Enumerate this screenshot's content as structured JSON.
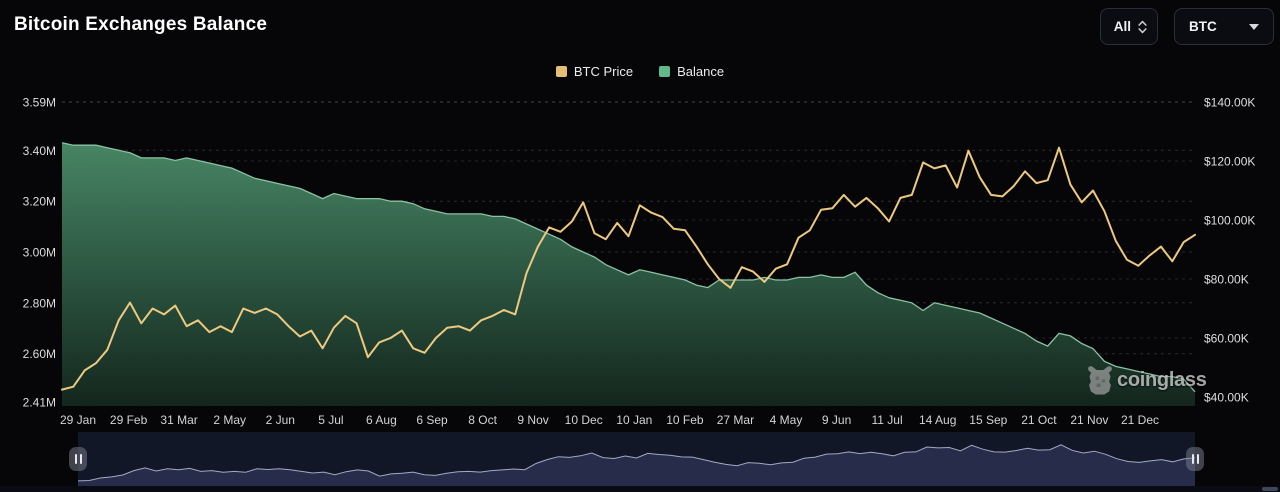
{
  "header": {
    "title": "Bitcoin Exchanges Balance"
  },
  "controls": {
    "range_select": {
      "value": "All"
    },
    "coin_select": {
      "value": "BTC"
    }
  },
  "legend": [
    {
      "label": "BTC Price",
      "color": "#e5be76"
    },
    {
      "label": "Balance",
      "color": "#5fb98a"
    }
  ],
  "watermark": {
    "text": "coinglass"
  },
  "chart_data": {
    "type": "line",
    "title": "Bitcoin Exchanges Balance",
    "x_start": "29 Jan 2024",
    "x_interval": "weekly",
    "x_ticks": [
      "29 Jan",
      "29 Feb",
      "31 Mar",
      "2 May",
      "2 Jun",
      "5 Jul",
      "6 Aug",
      "6 Sep",
      "8 Oct",
      "9 Nov",
      "10 Dec",
      "10 Jan",
      "10 Feb",
      "27 Mar",
      "4 May",
      "9 Jun",
      "11 Jul",
      "14 Aug",
      "15 Sep",
      "21 Oct",
      "21 Nov",
      "21 Dec"
    ],
    "grid": "dashed",
    "legend_position": "top-center",
    "y_left": {
      "title": "Balance (BTC)",
      "min": 2.41,
      "max": 3.59,
      "tick_values": [
        3.59,
        3.4,
        3.2,
        3.0,
        2.8,
        2.6,
        2.41
      ],
      "tick_labels": [
        "3.59M",
        "3.40M",
        "3.20M",
        "3.00M",
        "2.80M",
        "2.60M",
        "2.41M"
      ]
    },
    "y_right": {
      "title": "BTC Price (USD)",
      "min": 40,
      "max": 140,
      "tick_values": [
        140,
        120,
        100,
        80,
        60,
        40
      ],
      "tick_labels": [
        "$140.00K",
        "$120.00K",
        "$100.00K",
        "$80.00K",
        "$60.00K",
        "$40.00K"
      ]
    },
    "series": [
      {
        "name": "BTC Price",
        "axis": "right",
        "style": "line",
        "color": "#edc980",
        "unit": "thousand USD",
        "values": [
          42.5,
          43.5,
          49,
          51.5,
          56,
          66,
          72,
          65,
          70,
          68,
          71,
          64,
          66,
          62,
          64,
          62,
          70,
          68.5,
          70,
          68,
          64,
          60.5,
          62.5,
          56.5,
          63.5,
          67.5,
          65,
          53.5,
          58.5,
          60,
          62.5,
          56.5,
          55,
          60,
          63.5,
          64,
          62.5,
          66,
          67.5,
          69.5,
          68,
          82,
          91,
          97.5,
          96,
          99.5,
          106,
          95.5,
          93.5,
          99,
          94.5,
          105,
          102.5,
          101,
          97,
          96.5,
          91,
          85,
          80,
          77,
          84,
          82.5,
          79,
          83.5,
          85,
          94,
          96.5,
          103.5,
          104,
          108.5,
          104.5,
          107.5,
          104,
          99.5,
          107.5,
          108.5,
          119.5,
          117.5,
          118.5,
          111,
          123.5,
          114.5,
          108.5,
          108,
          111.5,
          116.5,
          112.5,
          113.5,
          124.5,
          112,
          106,
          110,
          103,
          93,
          86.5,
          84.5,
          88,
          91,
          86,
          92.5,
          95
        ]
      },
      {
        "name": "Balance",
        "axis": "left",
        "style": "area",
        "color": "#5fb98a",
        "line_color": "#8ac2a4",
        "fill_top": "#4b8c69",
        "fill_bottom": "#14271e",
        "unit": "million BTC",
        "values": [
          3.43,
          3.42,
          3.42,
          3.42,
          3.41,
          3.4,
          3.39,
          3.37,
          3.37,
          3.37,
          3.36,
          3.37,
          3.36,
          3.35,
          3.34,
          3.33,
          3.31,
          3.29,
          3.28,
          3.27,
          3.26,
          3.25,
          3.23,
          3.21,
          3.23,
          3.22,
          3.21,
          3.21,
          3.21,
          3.2,
          3.2,
          3.19,
          3.17,
          3.16,
          3.15,
          3.15,
          3.15,
          3.15,
          3.14,
          3.14,
          3.13,
          3.11,
          3.09,
          3.07,
          3.05,
          3.02,
          3.0,
          2.98,
          2.95,
          2.93,
          2.91,
          2.93,
          2.92,
          2.91,
          2.9,
          2.89,
          2.87,
          2.86,
          2.89,
          2.89,
          2.89,
          2.89,
          2.9,
          2.89,
          2.89,
          2.9,
          2.9,
          2.91,
          2.9,
          2.9,
          2.92,
          2.87,
          2.84,
          2.82,
          2.81,
          2.8,
          2.77,
          2.8,
          2.79,
          2.78,
          2.77,
          2.76,
          2.74,
          2.72,
          2.7,
          2.68,
          2.65,
          2.63,
          2.68,
          2.67,
          2.64,
          2.62,
          2.57,
          2.55,
          2.54,
          2.53,
          2.52,
          2.51,
          2.51,
          2.5,
          2.45
        ]
      }
    ],
    "navigator": {
      "shows": "BTC Price",
      "background": "#121728",
      "fill": "#262c4a",
      "line": "#a2aac2"
    }
  }
}
